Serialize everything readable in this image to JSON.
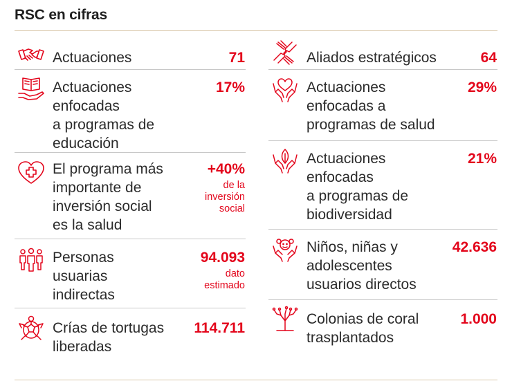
{
  "title": "RSC en cifras",
  "accent_color": "#e3051b",
  "left": [
    {
      "icon": "handshake-icon",
      "label": "Actuaciones",
      "value": "71"
    },
    {
      "icon": "book-hand-icon",
      "label": "Actuaciones\nenfocadas\na programas de\neducación",
      "value": "17%"
    },
    {
      "icon": "heart-cross-icon",
      "label": "El programa más\nimportante de\ninversión social\nes la salud",
      "value": "+40%",
      "note": "de la\ninversión\nsocial"
    },
    {
      "icon": "people-group-icon",
      "label": "Personas\nusuarias\nindirectas",
      "value": "94.093",
      "note": "dato\nestimado"
    },
    {
      "icon": "turtle-icon",
      "label": "Crías de tortugas\nliberadas",
      "value": "114.711"
    }
  ],
  "right": [
    {
      "icon": "hands-joined-icon",
      "label": "Aliados estratégicos",
      "value": "64"
    },
    {
      "icon": "heart-hands-icon",
      "label": "Actuaciones\nenfocadas a\nprogramas de salud",
      "value": "29%"
    },
    {
      "icon": "leaf-hands-icon",
      "label": "Actuaciones\nenfocadas\na programas de\nbiodiversidad",
      "value": "21%"
    },
    {
      "icon": "child-hands-icon",
      "label": "Niños, niñas y\nadolescentes\nusuarios directos",
      "value": "42.636"
    },
    {
      "icon": "coral-icon",
      "label": "Colonias de coral\ntrasplantados",
      "value": "1.000"
    }
  ]
}
